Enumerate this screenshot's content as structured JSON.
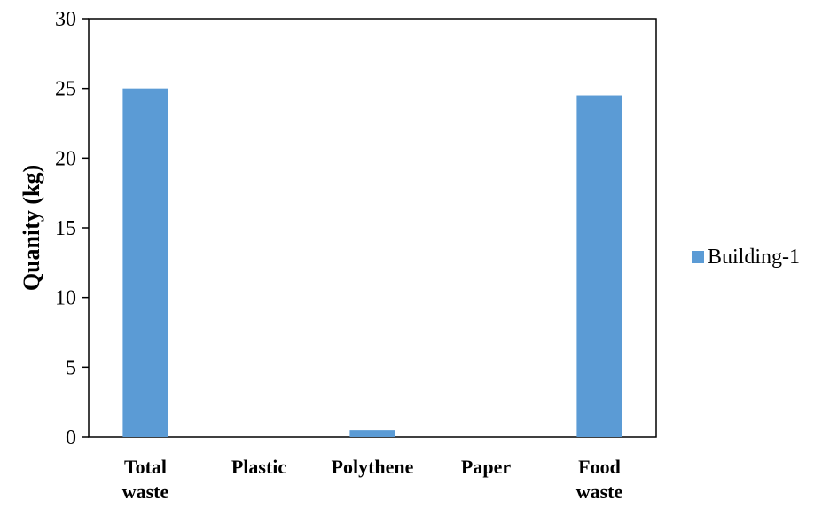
{
  "chart_data": {
    "type": "bar",
    "categories": [
      "Total\nwaste",
      "Plastic",
      "Polythene",
      "Paper",
      "Food\nwaste"
    ],
    "series": [
      {
        "name": "Building-1",
        "values": [
          25,
          0,
          0.5,
          0,
          24.5
        ],
        "color": "#5B9BD5"
      }
    ],
    "title": "",
    "xlabel": "",
    "ylabel": "Quanity (kg)",
    "ylim": [
      0,
      30
    ],
    "yticks": [
      0,
      5,
      10,
      15,
      20,
      25,
      30
    ],
    "grid": false,
    "legend_position": "right"
  }
}
